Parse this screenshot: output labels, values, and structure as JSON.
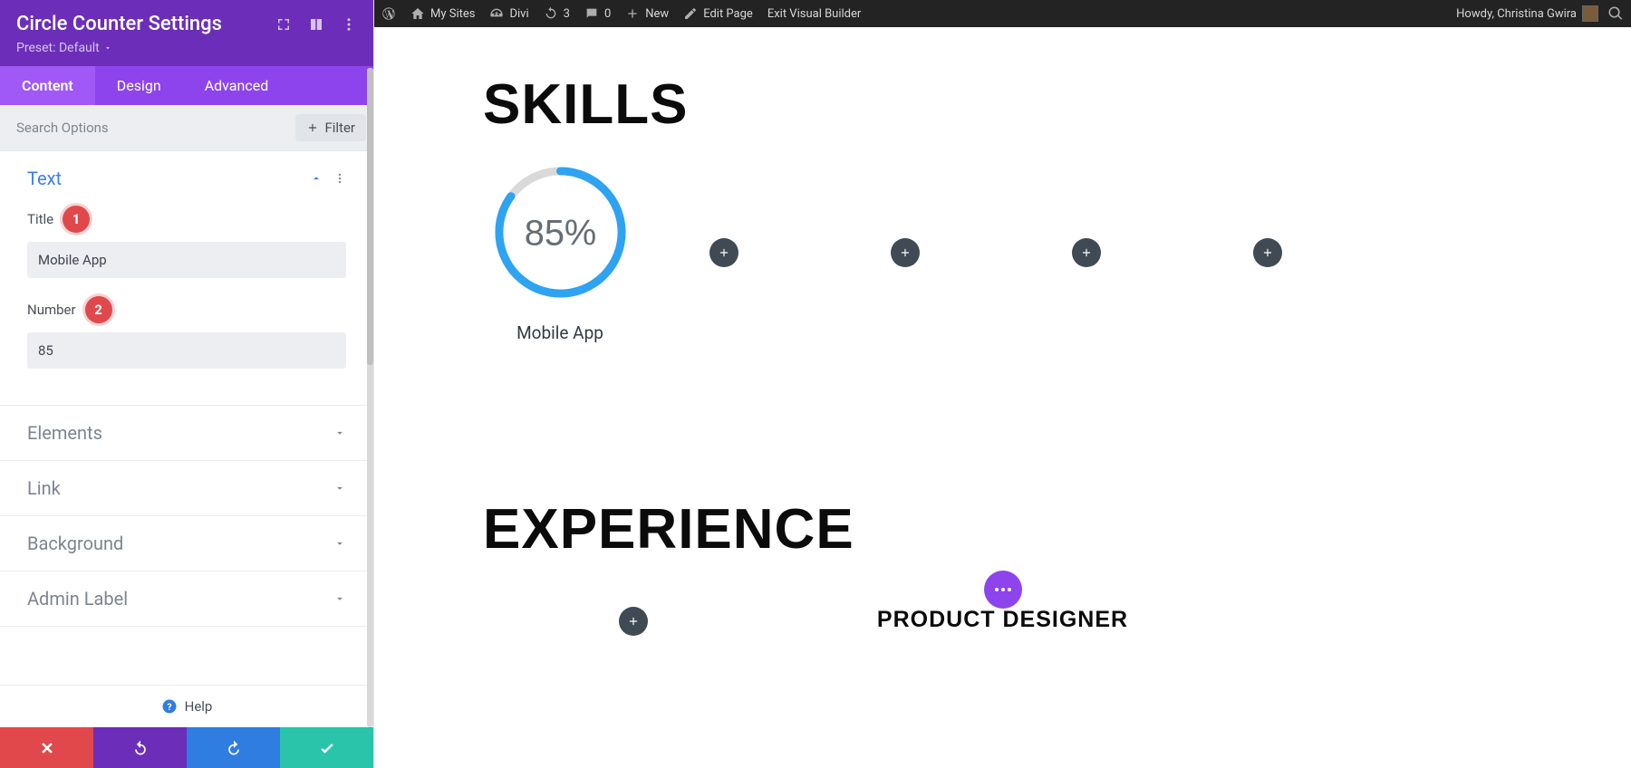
{
  "adminbar": {
    "my_sites": "My Sites",
    "divi": "Divi",
    "refresh_count": "3",
    "comments_count": "0",
    "new": "New",
    "edit_page": "Edit Page",
    "exit_vb": "Exit Visual Builder",
    "howdy": "Howdy, Christina Gwira"
  },
  "panel": {
    "title": "Circle Counter Settings",
    "preset": "Preset: Default",
    "tabs": {
      "content": "Content",
      "design": "Design",
      "advanced": "Advanced"
    },
    "search_placeholder": "Search Options",
    "filter": "Filter",
    "sections": {
      "text": {
        "title": "Text",
        "title_label": "Title",
        "title_badge": "1",
        "title_value": "Mobile App",
        "number_label": "Number",
        "number_badge": "2",
        "number_value": "85"
      },
      "elements": "Elements",
      "link": "Link",
      "background": "Background",
      "admin_label": "Admin Label"
    },
    "help": "Help",
    "footer_colors": {
      "close": "#e1484b",
      "undo": "#6c2eb9",
      "redo": "#2f7de1",
      "save": "#29c4a9"
    }
  },
  "canvas": {
    "skills_heading": "SKILLS",
    "counter": {
      "percent": 85,
      "percent_label": "85%",
      "label": "Mobile App",
      "track_color": "#d9d9d9",
      "progress_color": "#2ea3f2",
      "radius": 68,
      "circumference": 427.26
    },
    "add_count": 4,
    "experience_heading": "EXPERIENCE",
    "job_title": "PRODUCT DESIGNER"
  }
}
